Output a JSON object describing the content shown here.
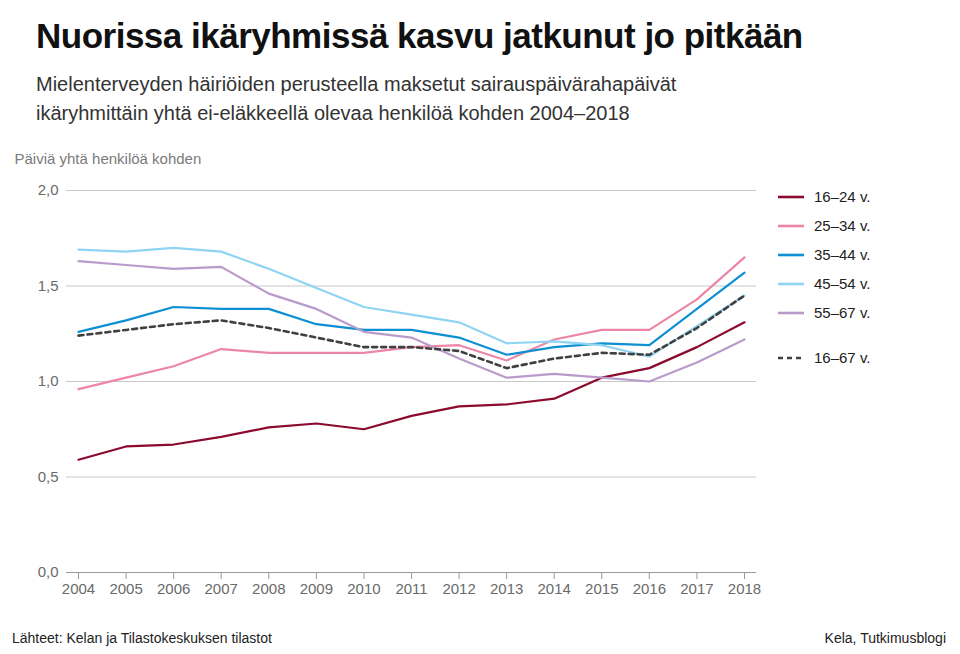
{
  "chart_data": {
    "type": "line",
    "title": "Nuorissa ikäryhmissä kasvu jatkunut jo pitkään",
    "subtitle": "Mielenterveyden häiriöiden perusteella maksetut sairauspäivärahapäivät ikäryhmittäin yhtä ei-eläkkeellä olevaa henkilöä kohden 2004–2018",
    "y_label": "Päiviä yhtä henkilöä kohden",
    "source": "Lähteet: Kelan ja Tilastokeskuksen tilastot",
    "credit": "Kela, Tutkimusblogi",
    "x": [
      2004,
      2005,
      2006,
      2007,
      2008,
      2009,
      2010,
      2011,
      2012,
      2013,
      2014,
      2015,
      2016,
      2017,
      2018
    ],
    "xlim": [
      2004,
      2018
    ],
    "xticks": [
      2004,
      2005,
      2006,
      2007,
      2008,
      2009,
      2010,
      2011,
      2012,
      2013,
      2014,
      2015,
      2016,
      2017,
      2018
    ],
    "ylim": [
      0,
      2
    ],
    "yticks": [
      {
        "value": 0,
        "label": "0,0"
      },
      {
        "value": 0.5,
        "label": "0,5"
      },
      {
        "value": 1,
        "label": "1,0"
      },
      {
        "value": 1.5,
        "label": "1,5"
      },
      {
        "value": 2,
        "label": "2,0"
      }
    ],
    "grid": true,
    "legend": "right",
    "series": [
      {
        "name": "16–24 v.",
        "color": "#8b0a2e",
        "line_style": "solid",
        "values": [
          0.59,
          0.66,
          0.67,
          0.71,
          0.76,
          0.78,
          0.75,
          0.82,
          0.87,
          0.88,
          0.91,
          1.02,
          1.07,
          1.18,
          1.31
        ]
      },
      {
        "name": "25–34 v.",
        "color": "#ec86a6",
        "line_style": "solid",
        "values": [
          0.96,
          1.02,
          1.08,
          1.17,
          1.15,
          1.15,
          1.15,
          1.18,
          1.19,
          1.11,
          1.22,
          1.27,
          1.27,
          1.43,
          1.65
        ]
      },
      {
        "name": "35–44 v.",
        "color": "#0d8fd2",
        "line_style": "solid",
        "values": [
          1.26,
          1.32,
          1.39,
          1.38,
          1.38,
          1.3,
          1.27,
          1.27,
          1.23,
          1.14,
          1.18,
          1.2,
          1.19,
          1.38,
          1.57
        ]
      },
      {
        "name": "45–54 v.",
        "color": "#8fd4f2",
        "line_style": "solid",
        "values": [
          1.69,
          1.68,
          1.7,
          1.68,
          1.59,
          1.49,
          1.39,
          1.35,
          1.31,
          1.2,
          1.21,
          1.19,
          1.13,
          1.29,
          1.45
        ]
      },
      {
        "name": "55–67 v.",
        "color": "#b99bcb",
        "line_style": "solid",
        "values": [
          1.63,
          1.61,
          1.59,
          1.6,
          1.46,
          1.38,
          1.26,
          1.23,
          1.12,
          1.02,
          1.04,
          1.02,
          1.0,
          1.1,
          1.22
        ]
      },
      {
        "name": "16–67 v.",
        "color": "#404040",
        "line_style": "dashed",
        "values": [
          1.24,
          1.27,
          1.3,
          1.32,
          1.28,
          1.23,
          1.18,
          1.18,
          1.16,
          1.07,
          1.12,
          1.15,
          1.14,
          1.28,
          1.45
        ]
      }
    ]
  }
}
